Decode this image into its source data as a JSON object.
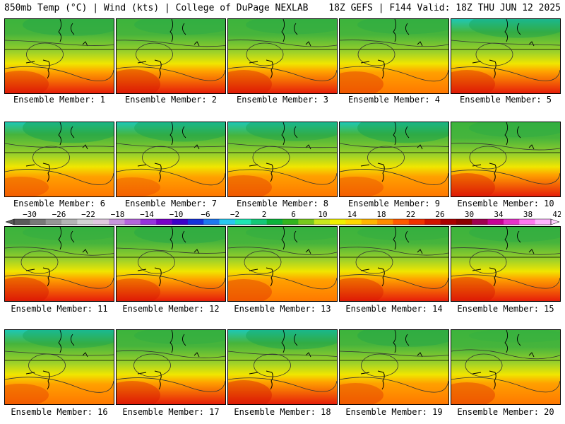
{
  "header": {
    "left": "850mb Temp (°C) | Wind (kts) | College of DuPage NEXLAB",
    "right": "18Z GEFS | F144 Valid: 18Z THU JUN 12 2025"
  },
  "members": [
    {
      "label": "Ensemble Member: 1",
      "warmth": 0.65,
      "cold_hint": 0.55
    },
    {
      "label": "Ensemble Member: 2",
      "warmth": 0.75,
      "cold_hint": 0.45
    },
    {
      "label": "Ensemble Member: 3",
      "warmth": 0.7,
      "cold_hint": 0.4
    },
    {
      "label": "Ensemble Member: 4",
      "warmth": 0.6,
      "cold_hint": 0.4
    },
    {
      "label": "Ensemble Member: 5",
      "warmth": 0.7,
      "cold_hint": 0.7
    },
    {
      "label": "Ensemble Member: 6",
      "warmth": 0.45,
      "cold_hint": 0.85
    },
    {
      "label": "Ensemble Member: 7",
      "warmth": 0.4,
      "cold_hint": 0.75
    },
    {
      "label": "Ensemble Member: 8",
      "warmth": 0.55,
      "cold_hint": 0.7
    },
    {
      "label": "Ensemble Member: 9",
      "warmth": 0.45,
      "cold_hint": 0.85
    },
    {
      "label": "Ensemble Member: 10",
      "warmth": 0.7,
      "cold_hint": 0.4
    },
    {
      "label": "Ensemble Member: 11",
      "warmth": 0.75,
      "cold_hint": 0.3
    },
    {
      "label": "Ensemble Member: 12",
      "warmth": 0.65,
      "cold_hint": 0.55
    },
    {
      "label": "Ensemble Member: 13",
      "warmth": 0.6,
      "cold_hint": 0.3
    },
    {
      "label": "Ensemble Member: 14",
      "warmth": 0.7,
      "cold_hint": 0.3
    },
    {
      "label": "Ensemble Member: 15",
      "warmth": 0.75,
      "cold_hint": 0.4
    },
    {
      "label": "Ensemble Member: 16",
      "warmth": 0.5,
      "cold_hint": 0.65
    },
    {
      "label": "Ensemble Member: 17",
      "warmth": 0.7,
      "cold_hint": 0.35
    },
    {
      "label": "Ensemble Member: 18",
      "warmth": 0.75,
      "cold_hint": 0.75
    },
    {
      "label": "Ensemble Member: 19",
      "warmth": 0.55,
      "cold_hint": 0.55
    },
    {
      "label": "Ensemble Member: 20",
      "warmth": 0.6,
      "cold_hint": 0.2
    }
  ],
  "colorbar": {
    "labels": [
      "−30",
      "−26",
      "−22",
      "−18",
      "−14",
      "−10",
      "−6",
      "−2",
      "2",
      "6",
      "10",
      "14",
      "18",
      "22",
      "26",
      "30",
      "34",
      "38",
      "42"
    ],
    "colors": [
      "#5a5a5a",
      "#787878",
      "#969696",
      "#b4b4b4",
      "#d2d2d2",
      "#e0c8e0",
      "#c896dc",
      "#b464dc",
      "#9632dc",
      "#7800c8",
      "#3c00c8",
      "#1432dc",
      "#1e78f0",
      "#28c8f0",
      "#1ee6b4",
      "#14c878",
      "#0ab43c",
      "#32b41e",
      "#78c81e",
      "#c8e61e",
      "#f0f000",
      "#ffd700",
      "#ffb400",
      "#ff8c00",
      "#ff5a00",
      "#f03200",
      "#d21400",
      "#aa0000",
      "#8c0000",
      "#a00050",
      "#c80096",
      "#e632c8",
      "#ff78f0",
      "#ffb4ff"
    ]
  }
}
